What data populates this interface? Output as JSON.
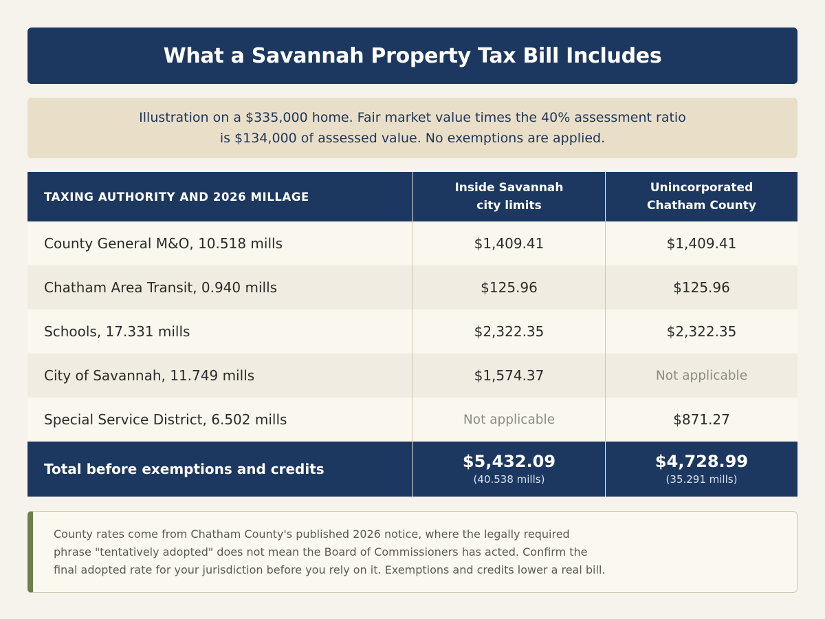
{
  "title": "What a Savannah Property Tax Bill Includes",
  "intro": {
    "line1": "Illustration on a $335,000 home. Fair market value times the 40% assessment ratio",
    "line2": "is $134,000 of assessed value. No exemptions are applied."
  },
  "table": {
    "headers": {
      "col1": "TAXING AUTHORITY AND 2026 MILLAGE",
      "col2_line1": "Inside Savannah",
      "col2_line2": "city limits",
      "col3_line1": "Unincorporated",
      "col3_line2": "Chatham County"
    },
    "rows": [
      {
        "authority": "County General M&O, 10.518 mills",
        "inside": "$1,409.41",
        "unincorporated": "$1,409.41"
      },
      {
        "authority": "Chatham Area Transit, 0.940 mills",
        "inside": "$125.96",
        "unincorporated": "$125.96"
      },
      {
        "authority": "Schools, 17.331 mills",
        "inside": "$2,322.35",
        "unincorporated": "$2,322.35"
      },
      {
        "authority": "City of Savannah, 11.749 mills",
        "inside": "$1,574.37",
        "unincorporated": "Not applicable"
      },
      {
        "authority": "Special Service District, 6.502 mills",
        "inside": "Not applicable",
        "unincorporated": "$871.27"
      }
    ],
    "total": {
      "label": "Total before exemptions and credits",
      "inside_amount": "$5,432.09",
      "inside_mills": "(40.538 mills)",
      "unincorporated_amount": "$4,728.99",
      "unincorporated_mills": "(35.291 mills)"
    }
  },
  "note": {
    "line1": "County rates come from Chatham County's published 2026 notice, where the legally required",
    "line2": "phrase \"tentatively adopted\" does not mean the Board of Commissioners has acted. Confirm the",
    "line3": "final adopted rate for your jurisdiction before you rely on it. Exemptions and credits lower a real bill."
  },
  "colors": {
    "navy": "#1c3860",
    "intro_background": "#e9dfc9",
    "page_background": "#f5f3ec",
    "note_accent": "#6b7f4d",
    "not_applicable_text": "#8b8b86"
  }
}
